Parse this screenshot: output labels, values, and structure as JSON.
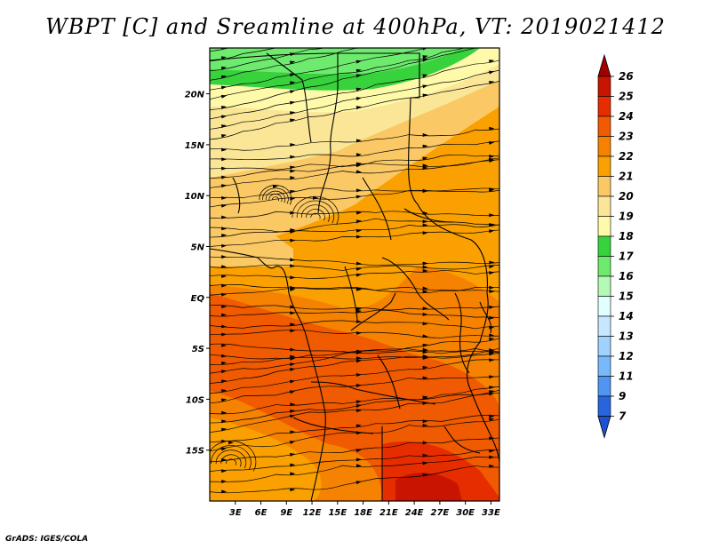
{
  "title": "WBPT [C] and Sreamline at 400hPa, VT: 2019021412",
  "credit": "GrADS: IGES/COLA",
  "map": {
    "lon_ticks": [
      "3E",
      "6E",
      "9E",
      "12E",
      "15E",
      "18E",
      "21E",
      "24E",
      "27E",
      "30E",
      "33E"
    ],
    "lat_ticks": [
      "20N",
      "15N",
      "10N",
      "5N",
      "EQ",
      "5S",
      "10S",
      "15S"
    ],
    "lon_range": [
      0,
      34
    ],
    "lat_range": [
      -20,
      24.5
    ]
  },
  "colorbar": {
    "labels": [
      "26",
      "25",
      "24",
      "23",
      "22",
      "21",
      "20",
      "19",
      "18",
      "17",
      "16",
      "15",
      "14",
      "13",
      "12",
      "11",
      "9",
      "7"
    ],
    "colors": [
      "#a00000",
      "#c81400",
      "#e62d00",
      "#f05a00",
      "#f58200",
      "#faa000",
      "#fac864",
      "#fae696",
      "#fffaaa",
      "#37d23c",
      "#6eeb6e",
      "#b4fab4",
      "#e1ffff",
      "#c8e6ff",
      "#a0d2ff",
      "#78b9fa",
      "#5096f0",
      "#2864dc",
      "#1e50d2"
    ]
  },
  "regions": [
    {
      "name": "green-band",
      "color": "#37d23c"
    },
    {
      "name": "light-green-band",
      "color": "#6eeb6e"
    },
    {
      "name": "pale-yellow-band",
      "color": "#fffaaa"
    },
    {
      "name": "tan-band",
      "color": "#fae696"
    },
    {
      "name": "light-orange-band",
      "color": "#fac864"
    },
    {
      "name": "orange-main",
      "color": "#faa000"
    },
    {
      "name": "dark-orange-band",
      "color": "#f58200"
    },
    {
      "name": "red-orange-core",
      "color": "#f05a00"
    },
    {
      "name": "red-hotspot",
      "color": "#e62d00"
    }
  ]
}
